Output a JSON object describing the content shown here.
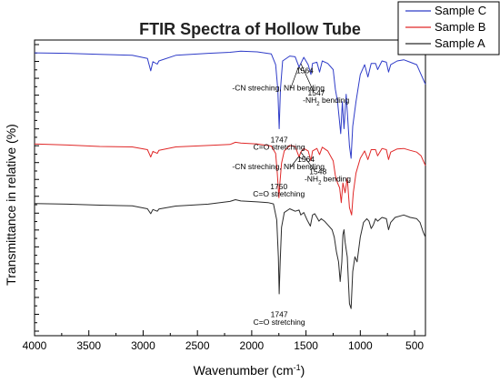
{
  "chart_data": {
    "type": "line",
    "title": "FTIR Spectra of Hollow Tube",
    "xlabel_main": "Wavenumber (cm",
    "xlabel_sup": "-1",
    "xlabel_end": ")",
    "ylabel": "Transmittance in relative (%)",
    "xlim": [
      4000,
      400
    ],
    "x_reversed": true,
    "x_ticks": [
      4000,
      3500,
      3000,
      2500,
      2000,
      1500,
      1000,
      500
    ],
    "y_tick_labels": false,
    "legend_position": "top-right",
    "series": [
      {
        "name": "Sample C",
        "color": "#2f3cc8",
        "points": [
          [
            4000,
            0.948
          ],
          [
            3700,
            0.946
          ],
          [
            3400,
            0.942
          ],
          [
            3100,
            0.938
          ],
          [
            2960,
            0.925
          ],
          [
            2930,
            0.875
          ],
          [
            2910,
            0.912
          ],
          [
            2870,
            0.902
          ],
          [
            2855,
            0.915
          ],
          [
            2700,
            0.938
          ],
          [
            2400,
            0.946
          ],
          [
            2200,
            0.95
          ],
          [
            2100,
            0.955
          ],
          [
            1950,
            0.952
          ],
          [
            1820,
            0.944
          ],
          [
            1780,
            0.9
          ],
          [
            1760,
            0.8
          ],
          [
            1747,
            0.64
          ],
          [
            1735,
            0.8
          ],
          [
            1715,
            0.915
          ],
          [
            1650,
            0.935
          ],
          [
            1600,
            0.932
          ],
          [
            1564,
            0.89
          ],
          [
            1548,
            0.905
          ],
          [
            1520,
            0.93
          ],
          [
            1480,
            0.9
          ],
          [
            1455,
            0.86
          ],
          [
            1440,
            0.905
          ],
          [
            1400,
            0.91
          ],
          [
            1375,
            0.87
          ],
          [
            1350,
            0.915
          ],
          [
            1300,
            0.905
          ],
          [
            1250,
            0.88
          ],
          [
            1230,
            0.8
          ],
          [
            1210,
            0.75
          ],
          [
            1180,
            0.62
          ],
          [
            1165,
            0.75
          ],
          [
            1150,
            0.64
          ],
          [
            1130,
            0.78
          ],
          [
            1100,
            0.57
          ],
          [
            1085,
            0.52
          ],
          [
            1070,
            0.65
          ],
          [
            1040,
            0.75
          ],
          [
            1000,
            0.86
          ],
          [
            960,
            0.9
          ],
          [
            930,
            0.85
          ],
          [
            900,
            0.905
          ],
          [
            860,
            0.905
          ],
          [
            840,
            0.88
          ],
          [
            800,
            0.915
          ],
          [
            760,
            0.91
          ],
          [
            740,
            0.87
          ],
          [
            720,
            0.9
          ],
          [
            660,
            0.915
          ],
          [
            600,
            0.92
          ],
          [
            540,
            0.91
          ],
          [
            480,
            0.9
          ],
          [
            440,
            0.86
          ],
          [
            410,
            0.83
          ],
          [
            400,
            0.82
          ]
        ]
      },
      {
        "name": "Sample B",
        "color": "#e02828",
        "points": [
          [
            4000,
            0.578
          ],
          [
            3700,
            0.574
          ],
          [
            3400,
            0.568
          ],
          [
            3100,
            0.566
          ],
          [
            2960,
            0.555
          ],
          [
            2930,
            0.525
          ],
          [
            2910,
            0.548
          ],
          [
            2870,
            0.54
          ],
          [
            2855,
            0.552
          ],
          [
            2700,
            0.566
          ],
          [
            2400,
            0.572
          ],
          [
            2200,
            0.576
          ],
          [
            2150,
            0.585
          ],
          [
            2100,
            0.582
          ],
          [
            1950,
            0.578
          ],
          [
            1820,
            0.57
          ],
          [
            1780,
            0.54
          ],
          [
            1765,
            0.46
          ],
          [
            1750,
            0.36
          ],
          [
            1740,
            0.42
          ],
          [
            1725,
            0.5
          ],
          [
            1700,
            0.55
          ],
          [
            1650,
            0.572
          ],
          [
            1600,
            0.568
          ],
          [
            1564,
            0.525
          ],
          [
            1548,
            0.545
          ],
          [
            1520,
            0.56
          ],
          [
            1480,
            0.55
          ],
          [
            1455,
            0.51
          ],
          [
            1440,
            0.55
          ],
          [
            1400,
            0.56
          ],
          [
            1375,
            0.535
          ],
          [
            1350,
            0.565
          ],
          [
            1300,
            0.55
          ],
          [
            1250,
            0.51
          ],
          [
            1230,
            0.45
          ],
          [
            1210,
            0.42
          ],
          [
            1190,
            0.4
          ],
          [
            1175,
            0.34
          ],
          [
            1160,
            0.42
          ],
          [
            1140,
            0.38
          ],
          [
            1120,
            0.44
          ],
          [
            1100,
            0.32
          ],
          [
            1080,
            0.29
          ],
          [
            1065,
            0.38
          ],
          [
            1040,
            0.46
          ],
          [
            1000,
            0.52
          ],
          [
            960,
            0.55
          ],
          [
            930,
            0.515
          ],
          [
            900,
            0.555
          ],
          [
            860,
            0.555
          ],
          [
            840,
            0.53
          ],
          [
            800,
            0.56
          ],
          [
            760,
            0.555
          ],
          [
            740,
            0.515
          ],
          [
            720,
            0.545
          ],
          [
            660,
            0.558
          ],
          [
            600,
            0.56
          ],
          [
            540,
            0.552
          ],
          [
            480,
            0.545
          ],
          [
            440,
            0.53
          ],
          [
            410,
            0.5
          ],
          [
            400,
            0.49
          ]
        ]
      },
      {
        "name": "Sample A",
        "color": "#2a2a2a",
        "points": [
          [
            4000,
            0.336
          ],
          [
            3700,
            0.334
          ],
          [
            3400,
            0.33
          ],
          [
            3100,
            0.327
          ],
          [
            2960,
            0.315
          ],
          [
            2930,
            0.295
          ],
          [
            2910,
            0.312
          ],
          [
            2870,
            0.305
          ],
          [
            2855,
            0.314
          ],
          [
            2700,
            0.326
          ],
          [
            2400,
            0.334
          ],
          [
            2200,
            0.345
          ],
          [
            2150,
            0.352
          ],
          [
            2100,
            0.347
          ],
          [
            1950,
            0.343
          ],
          [
            1850,
            0.34
          ],
          [
            1800,
            0.335
          ],
          [
            1770,
            0.27
          ],
          [
            1755,
            0.12
          ],
          [
            1747,
            -0.03
          ],
          [
            1738,
            0.1
          ],
          [
            1725,
            0.24
          ],
          [
            1700,
            0.3
          ],
          [
            1650,
            0.315
          ],
          [
            1600,
            0.305
          ],
          [
            1564,
            0.31
          ],
          [
            1548,
            0.29
          ],
          [
            1520,
            0.3
          ],
          [
            1490,
            0.27
          ],
          [
            1460,
            0.245
          ],
          [
            1440,
            0.29
          ],
          [
            1420,
            0.295
          ],
          [
            1400,
            0.28
          ],
          [
            1380,
            0.265
          ],
          [
            1360,
            0.275
          ],
          [
            1330,
            0.265
          ],
          [
            1300,
            0.25
          ],
          [
            1260,
            0.23
          ],
          [
            1240,
            0.2
          ],
          [
            1220,
            0.14
          ],
          [
            1200,
            0.1
          ],
          [
            1185,
            0.02
          ],
          [
            1170,
            0.1
          ],
          [
            1160,
            0.21
          ],
          [
            1150,
            0.23
          ],
          [
            1140,
            0.18
          ],
          [
            1120,
            0.12
          ],
          [
            1100,
            -0.07
          ],
          [
            1085,
            -0.09
          ],
          [
            1070,
            0.06
          ],
          [
            1050,
            0.12
          ],
          [
            1030,
            0.1
          ],
          [
            1000,
            0.2
          ],
          [
            970,
            0.26
          ],
          [
            940,
            0.275
          ],
          [
            920,
            0.265
          ],
          [
            900,
            0.235
          ],
          [
            880,
            0.25
          ],
          [
            860,
            0.275
          ],
          [
            840,
            0.265
          ],
          [
            800,
            0.28
          ],
          [
            760,
            0.275
          ],
          [
            740,
            0.23
          ],
          [
            720,
            0.26
          ],
          [
            680,
            0.28
          ],
          [
            600,
            0.29
          ],
          [
            540,
            0.28
          ],
          [
            480,
            0.275
          ],
          [
            450,
            0.26
          ],
          [
            420,
            0.22
          ],
          [
            400,
            0.2
          ]
        ]
      }
    ],
    "annotations": [
      {
        "text": "1564",
        "wn": 1510,
        "level": 0.865,
        "ax": 1540,
        "al": 0.875,
        "bx": 1564,
        "bl": 0.89
      },
      {
        "text": "-CN streching, NH bending",
        "wn": 1755,
        "level": 0.795,
        "ax": 1640,
        "al": 0.805,
        "bx": 1570,
        "bl": 0.89
      },
      {
        "text": "1547",
        "wn": 1405,
        "level": 0.775,
        "ax": 1430,
        "al": 0.79,
        "bx": 1548,
        "bl": 0.905
      },
      {
        "text": "-NH",
        "sub": "2",
        "tail": " bending",
        "wn": 1315,
        "level": 0.745
      },
      {
        "text": "1747",
        "wn": 1747,
        "level": 0.585
      },
      {
        "text": "C=O stretching",
        "wn": 1747,
        "level": 0.555
      },
      {
        "text": "1564",
        "wn": 1500,
        "level": 0.505,
        "ax": 1525,
        "al": 0.515,
        "bx": 1564,
        "bl": 0.525
      },
      {
        "text": "-CN streching, NH bending",
        "wn": 1755,
        "level": 0.475,
        "ax": 1640,
        "al": 0.485,
        "bx": 1570,
        "bl": 0.525
      },
      {
        "text": "1548",
        "wn": 1390,
        "level": 0.455,
        "ax": 1420,
        "al": 0.47,
        "bx": 1548,
        "bl": 0.545
      },
      {
        "text": "-NH",
        "sub": "2",
        "tail": " bending",
        "wn": 1300,
        "level": 0.425
      },
      {
        "text": "1750",
        "wn": 1750,
        "level": 0.395
      },
      {
        "text": "C=O stretching",
        "wn": 1750,
        "level": 0.365
      },
      {
        "text": "1747",
        "wn": 1747,
        "level": -0.125
      },
      {
        "text": "C=O stretching",
        "wn": 1747,
        "level": -0.155
      }
    ]
  }
}
